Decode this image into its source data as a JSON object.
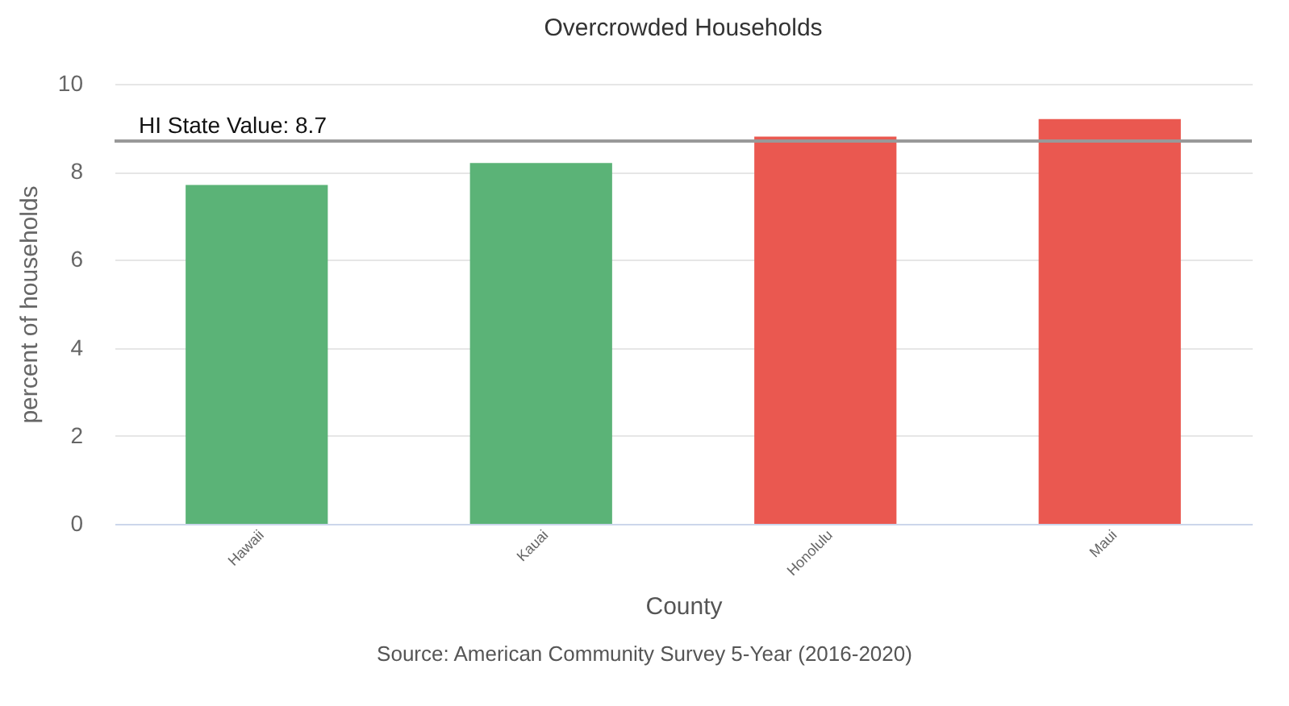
{
  "chart_data": {
    "type": "bar",
    "title": "Overcrowded Households",
    "xlabel": "County",
    "ylabel": "percent of households",
    "categories": [
      "Hawaii",
      "Kauai",
      "Honolulu",
      "Maui"
    ],
    "values": [
      7.7,
      8.2,
      8.8,
      9.2
    ],
    "colors": [
      "#5bb377",
      "#5bb377",
      "#ea5850",
      "#ea5850"
    ],
    "ylim": [
      0,
      10
    ],
    "yticks": [
      0,
      2,
      4,
      6,
      8,
      10
    ],
    "grid": "y",
    "ref_lines": [
      {
        "axis": "y",
        "value": 8.7,
        "label": "HI State Value: 8.7",
        "color": "#999999"
      }
    ],
    "annotations": [
      "Source: American Community Survey 5-Year (2016-2020)"
    ]
  }
}
